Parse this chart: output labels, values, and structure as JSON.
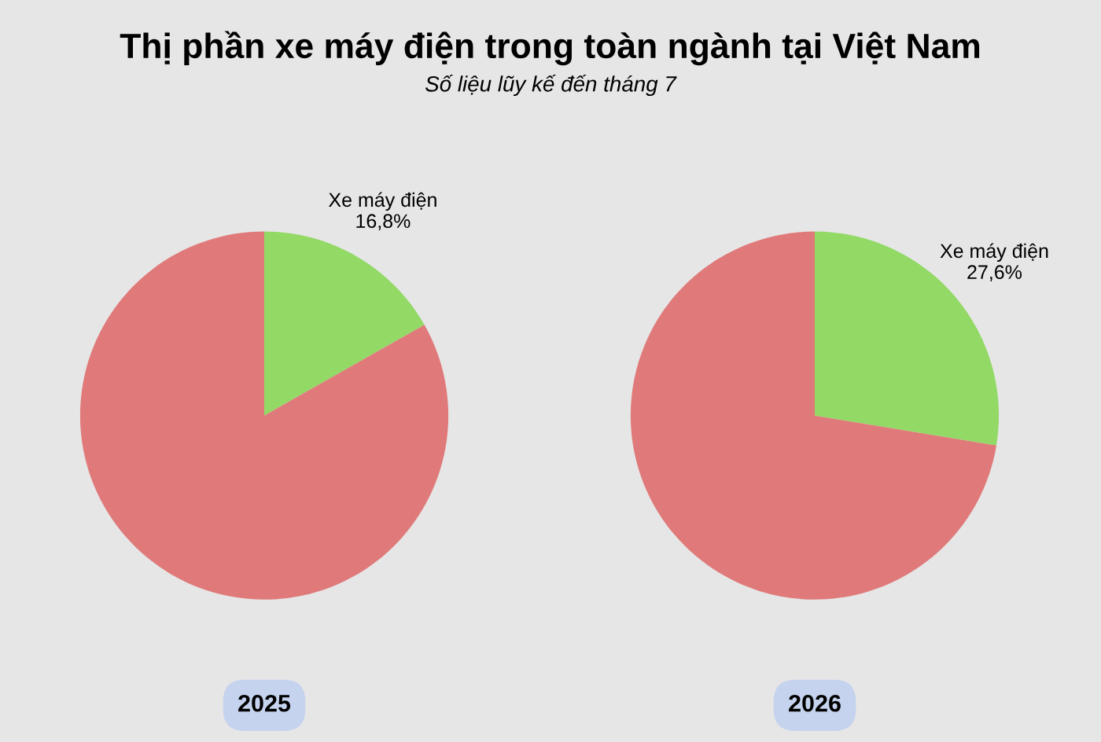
{
  "chart_data": [
    {
      "type": "pie",
      "title": "Thị phần xe máy điện trong toàn ngành tại Việt Nam",
      "subtitle": "Số liệu lũy kế đến tháng 7",
      "xlabel": "2025",
      "categories": [
        "Xe máy điện",
        null
      ],
      "values": [
        16.8,
        83.2
      ],
      "value_labels": [
        "16,8%",
        null
      ],
      "colors": [
        "#93d966",
        "#e07a7a"
      ]
    },
    {
      "type": "pie",
      "xlabel": "2026",
      "categories": [
        "Xe máy điện",
        null
      ],
      "values": [
        27.6,
        72.4
      ],
      "value_labels": [
        "27,6%",
        null
      ],
      "colors": [
        "#93d966",
        "#e07a7a"
      ]
    }
  ]
}
